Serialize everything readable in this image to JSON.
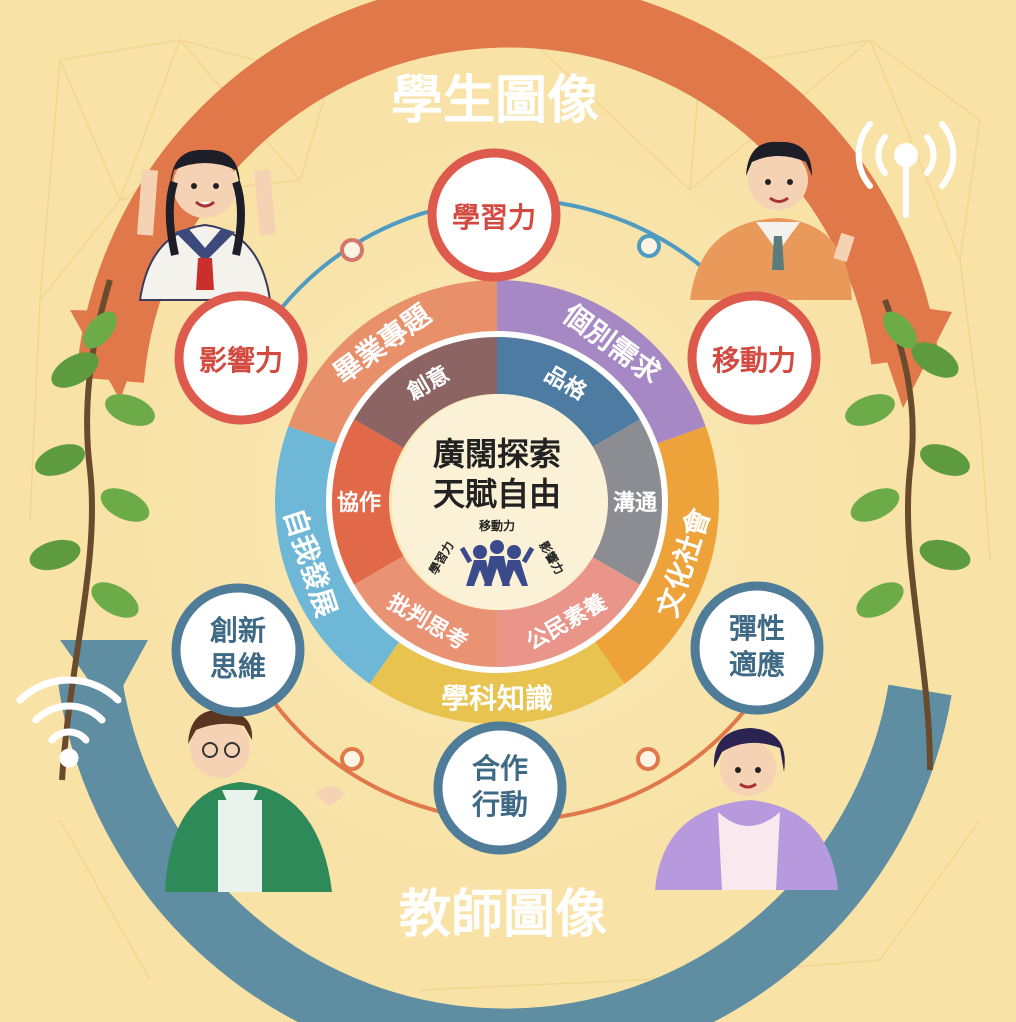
{
  "student_portrait": "學生圖像",
  "teacher_portrait": "教師圖像",
  "student_competencies": [
    "學習力",
    "移動力",
    "影響力"
  ],
  "teacher_competencies": [
    [
      "創新",
      "思維"
    ],
    [
      "合作",
      "行動"
    ],
    [
      "彈性",
      "適應"
    ]
  ],
  "curriculum_ring": [
    "畢業專題",
    "個別需求",
    "文化社會",
    "學科知識",
    "自我發展"
  ],
  "core_values": [
    "創意",
    "品格",
    "溝通",
    "公民素養",
    "批判思考",
    "協作"
  ],
  "center": {
    "motto_line1": "廣闊探索",
    "motto_line2": "天賦自由",
    "logo_left": "學習力",
    "logo_top": "移動力",
    "logo_right": "影響力"
  },
  "colors": {
    "background": "#f8e2a6",
    "student_band": "#e0784a",
    "teacher_band": "#5f8ea3",
    "student_circle_border": "#de5a4c",
    "teacher_circle_border": "#4f7d99",
    "ring": [
      "#e8906a",
      "#a688c4",
      "#eea23a",
      "#e8c34f",
      "#6eb7d6"
    ],
    "core": [
      "#8c6464",
      "#4e7ba1",
      "#8c8d93",
      "#e9958a",
      "#ea9274",
      "#e2684a"
    ],
    "center": "#fbf1d6"
  }
}
